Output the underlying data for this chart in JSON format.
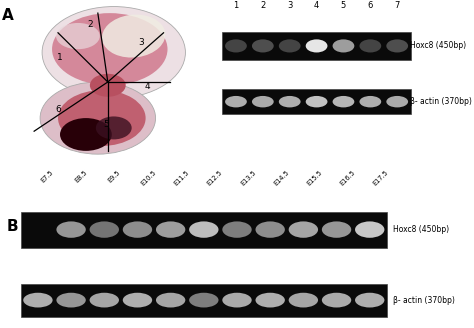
{
  "panel_A_label": "A",
  "panel_B_label": "B",
  "bg_color": "#ffffff",
  "gel_A_lanes": 7,
  "gel_A_hoxc8_intensity": [
    0.28,
    0.32,
    0.28,
    0.95,
    0.65,
    0.28,
    0.32
  ],
  "gel_A_actin_intensity": [
    0.72,
    0.7,
    0.72,
    0.8,
    0.75,
    0.72,
    0.7
  ],
  "gel_A_label1": "Hoxc8 (450bp)",
  "gel_A_label2": "β- actin (370bp)",
  "gel_B_labels": [
    "E7.5",
    "E8.5",
    "E9.5",
    "E10.5",
    "E11.5",
    "E12.5",
    "E13.5",
    "E14.5",
    "E15.5",
    "E16.5",
    "E17.5"
  ],
  "gel_B_hoxc8_intensity": [
    0.04,
    0.62,
    0.48,
    0.58,
    0.65,
    0.78,
    0.52,
    0.58,
    0.68,
    0.62,
    0.82
  ],
  "gel_B_actin_intensity": [
    0.72,
    0.62,
    0.68,
    0.72,
    0.68,
    0.52,
    0.7,
    0.72,
    0.68,
    0.7,
    0.72
  ],
  "gel_B_label1": "Hoxc8 (450bp)",
  "gel_B_label2": "β- actin (370bp)",
  "lane_numbers_A": [
    "1",
    "2",
    "3",
    "4",
    "5",
    "6",
    "7"
  ],
  "embryo_outer": "#e8d0d8",
  "embryo_pink1": "#d4899a",
  "embryo_pink2": "#c06070",
  "embryo_dark": "#300010",
  "embryo_cream": "#f0ece0",
  "embryo_light_pink": "#e8b8c4"
}
